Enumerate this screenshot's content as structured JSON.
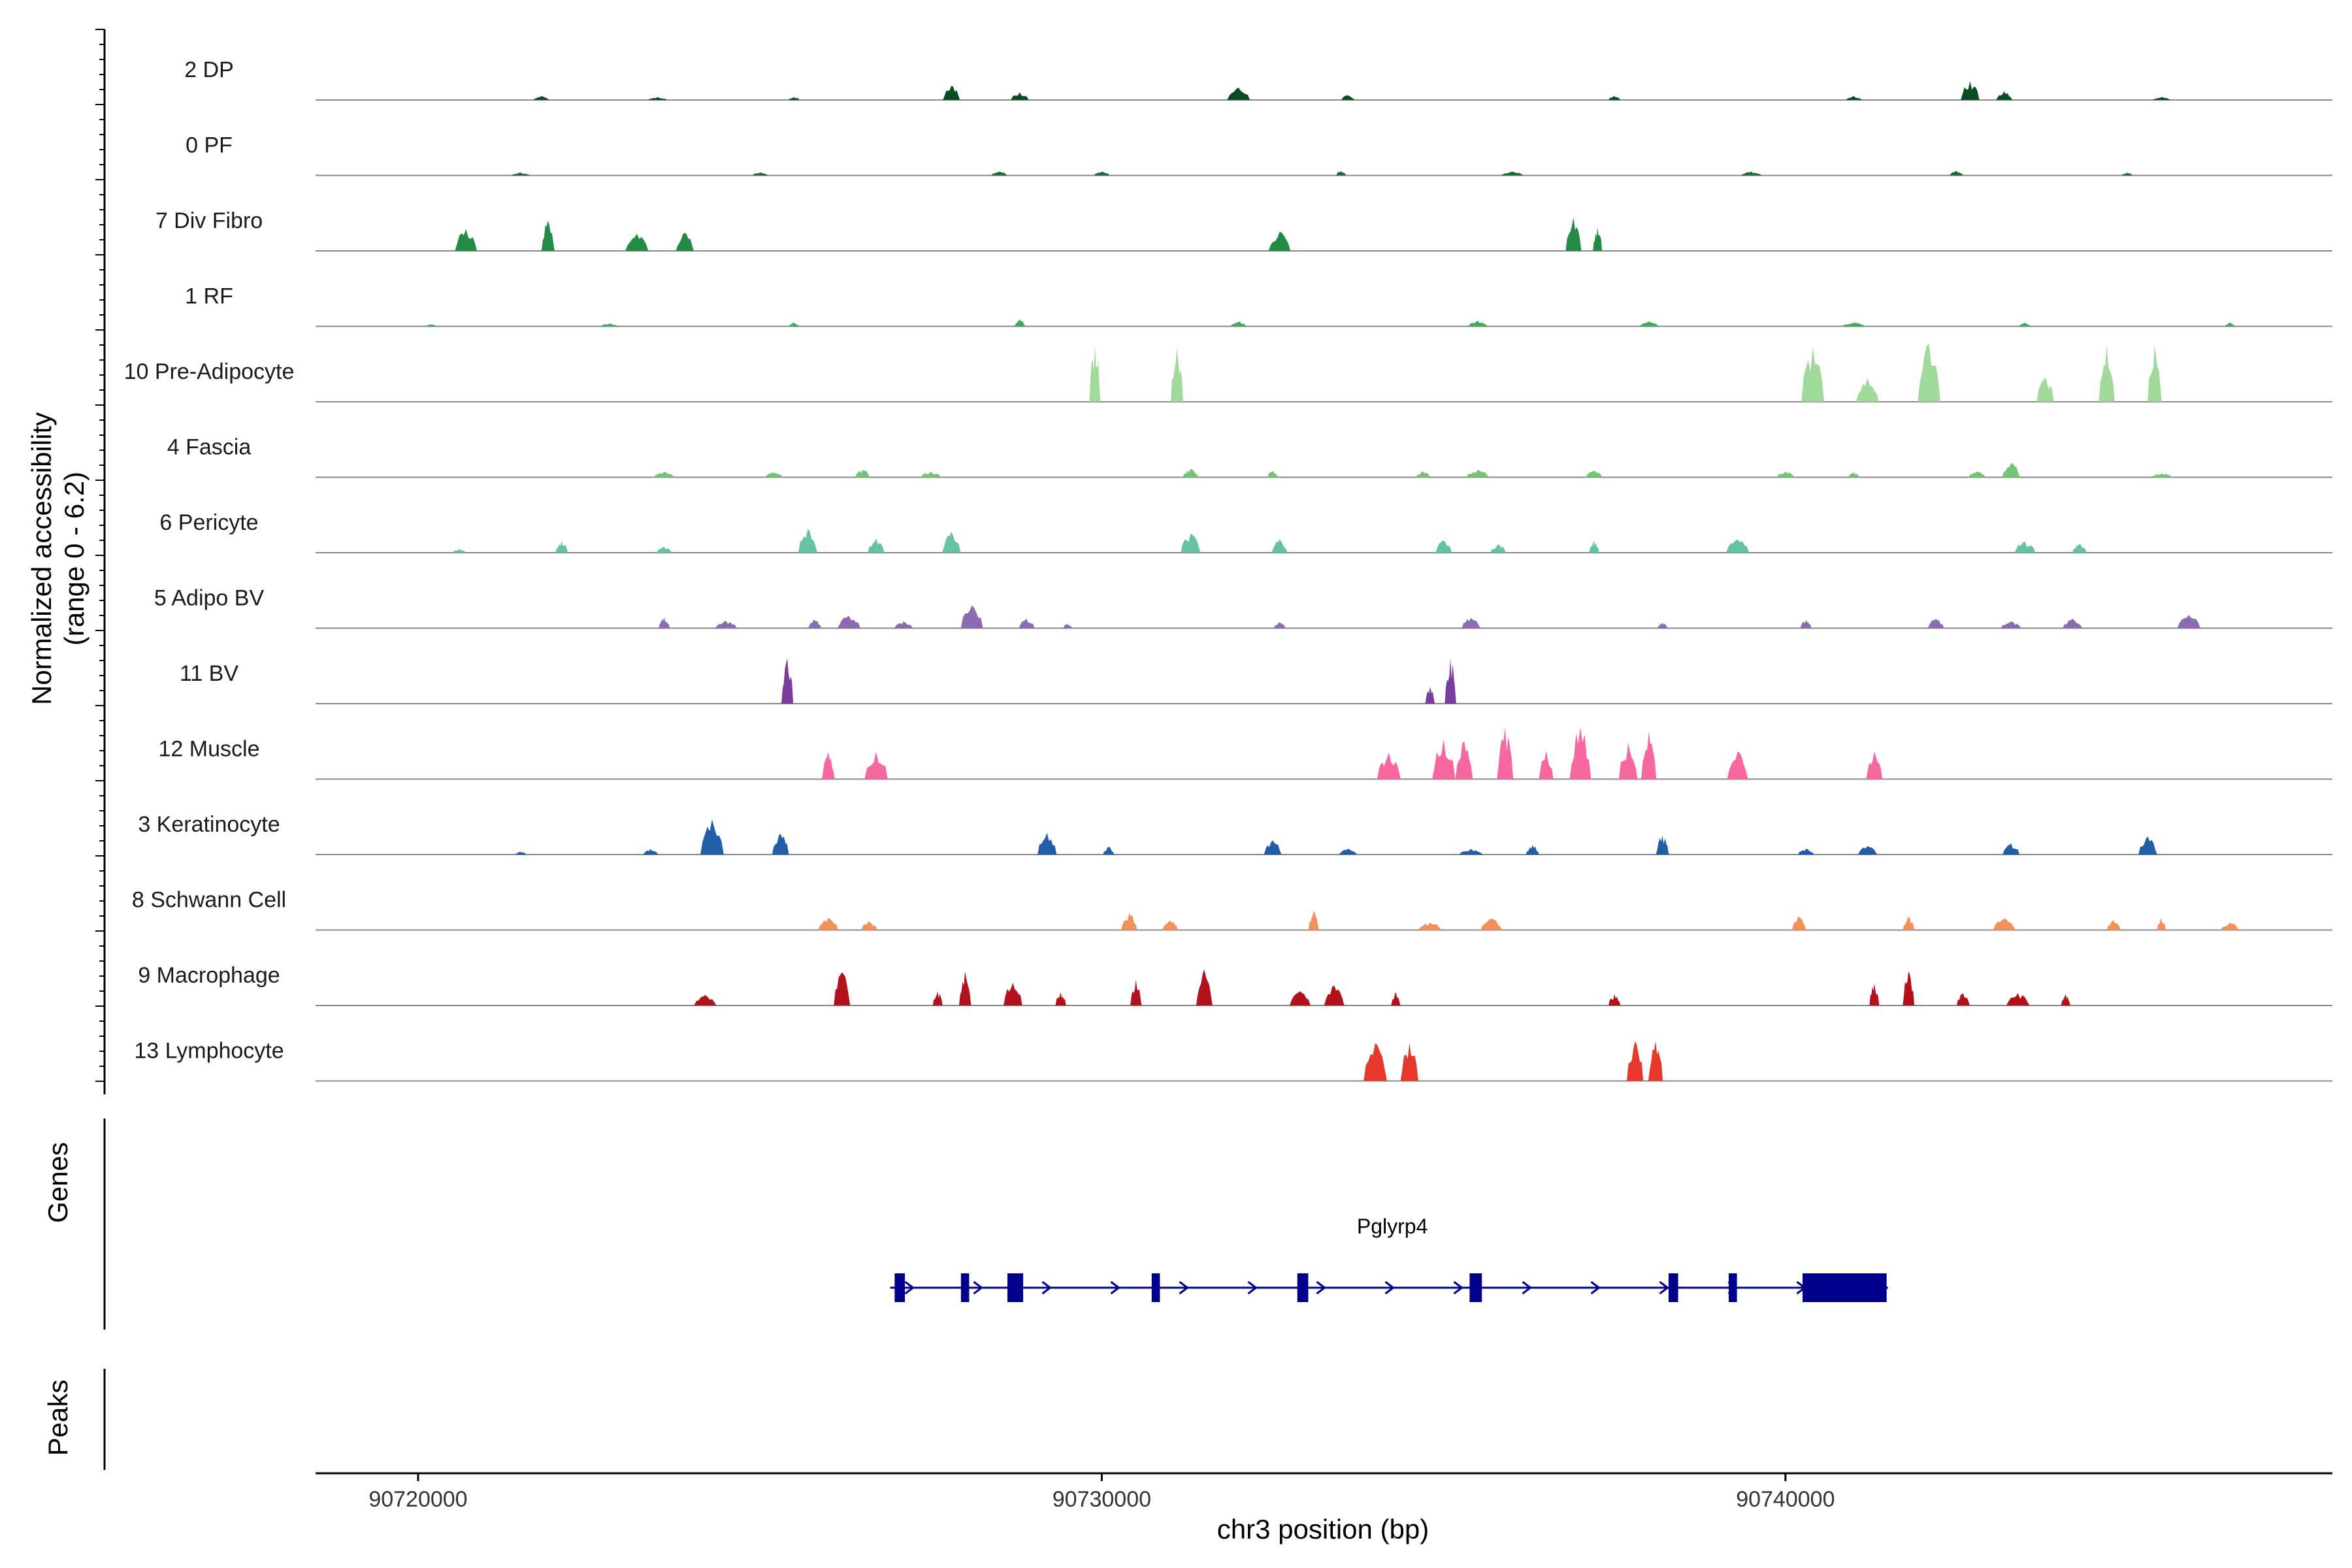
{
  "chart_data": {
    "type": "area",
    "title": "",
    "ylabel": "Normalized accessibility\n(range 0 - 6.2)",
    "ylim": [
      0,
      6.2
    ],
    "xlabel": "chr3 position (bp)",
    "xlim": [
      90718500,
      90748000
    ],
    "x_ticks": [
      90720000,
      90730000,
      90740000
    ],
    "x_tick_labels": [
      "90720000",
      "90730000",
      "90740000"
    ],
    "tracks": [
      {
        "name": "2 DP",
        "color": "#0b4d22",
        "peaks": [
          [
            90721800,
            0.4
          ],
          [
            90723500,
            0.3
          ],
          [
            90725500,
            0.3
          ],
          [
            90727800,
            1.5
          ],
          [
            90728800,
            0.8
          ],
          [
            90732000,
            1.3
          ],
          [
            90733600,
            0.5
          ],
          [
            90737500,
            0.4
          ],
          [
            90741000,
            0.4
          ],
          [
            90742700,
            2.0
          ],
          [
            90743200,
            0.9
          ],
          [
            90745500,
            0.3
          ]
        ]
      },
      {
        "name": "0 PF",
        "color": "#1d6b35",
        "peaks": [
          [
            90721500,
            0.3
          ],
          [
            90725000,
            0.3
          ],
          [
            90728500,
            0.4
          ],
          [
            90730000,
            0.4
          ],
          [
            90733500,
            0.5
          ],
          [
            90736000,
            0.4
          ],
          [
            90739500,
            0.4
          ],
          [
            90742500,
            0.5
          ],
          [
            90745000,
            0.3
          ]
        ]
      },
      {
        "name": "7 Div Fibro",
        "color": "#238b45",
        "peaks": [
          [
            90720700,
            2.3
          ],
          [
            90721900,
            3.2
          ],
          [
            90723200,
            1.8
          ],
          [
            90723900,
            1.9
          ],
          [
            90732600,
            2.0
          ],
          [
            90736900,
            3.5
          ],
          [
            90737250,
            2.5
          ]
        ]
      },
      {
        "name": "1 RF",
        "color": "#41ab5d",
        "peaks": [
          [
            90720200,
            0.2
          ],
          [
            90722800,
            0.3
          ],
          [
            90725500,
            0.4
          ],
          [
            90728800,
            0.7
          ],
          [
            90732000,
            0.5
          ],
          [
            90735500,
            0.6
          ],
          [
            90738000,
            0.5
          ],
          [
            90741000,
            0.4
          ],
          [
            90743500,
            0.4
          ],
          [
            90746500,
            0.4
          ]
        ]
      },
      {
        "name": "10 Pre-Adipocyte",
        "color": "#a1d99b",
        "peaks": [
          [
            90729900,
            6.0
          ],
          [
            90731100,
            5.7
          ],
          [
            90740400,
            5.8
          ],
          [
            90741200,
            2.5
          ],
          [
            90742100,
            6.1
          ],
          [
            90743800,
            2.6
          ],
          [
            90744700,
            6.0
          ],
          [
            90745400,
            6.0
          ]
        ]
      },
      {
        "name": "4 Fascia",
        "color": "#74c476",
        "peaks": [
          [
            90723600,
            0.6
          ],
          [
            90725200,
            0.5
          ],
          [
            90726500,
            0.8
          ],
          [
            90727500,
            0.6
          ],
          [
            90731300,
            0.9
          ],
          [
            90732500,
            0.7
          ],
          [
            90734700,
            0.6
          ],
          [
            90735500,
            0.8
          ],
          [
            90737200,
            0.7
          ],
          [
            90740000,
            0.6
          ],
          [
            90741000,
            0.5
          ],
          [
            90742800,
            0.6
          ],
          [
            90743300,
            1.5
          ],
          [
            90745500,
            0.4
          ]
        ]
      },
      {
        "name": "6 Pericyte",
        "color": "#66c2a4",
        "peaks": [
          [
            90720600,
            0.4
          ],
          [
            90722100,
            1.2
          ],
          [
            90723600,
            0.6
          ],
          [
            90725700,
            2.5
          ],
          [
            90726700,
            1.5
          ],
          [
            90727800,
            2.2
          ],
          [
            90731300,
            2.0
          ],
          [
            90732600,
            1.4
          ],
          [
            90735000,
            1.3
          ],
          [
            90735800,
            0.9
          ],
          [
            90737200,
            1.3
          ],
          [
            90739300,
            1.4
          ],
          [
            90743500,
            1.2
          ],
          [
            90744300,
            0.9
          ]
        ]
      },
      {
        "name": "5 Adipo BV",
        "color": "#8c6bb1",
        "peaks": [
          [
            90723600,
            1.1
          ],
          [
            90724500,
            0.8
          ],
          [
            90725800,
            0.9
          ],
          [
            90726300,
            1.3
          ],
          [
            90727100,
            0.7
          ],
          [
            90728100,
            2.4
          ],
          [
            90728900,
            1.0
          ],
          [
            90729500,
            0.5
          ],
          [
            90732600,
            0.6
          ],
          [
            90735400,
            1.1
          ],
          [
            90738200,
            0.6
          ],
          [
            90740300,
            0.9
          ],
          [
            90742200,
            1.0
          ],
          [
            90743300,
            0.7
          ],
          [
            90744200,
            1.0
          ],
          [
            90745900,
            1.4
          ]
        ]
      },
      {
        "name": "11 BV",
        "color": "#7a3d9e",
        "peaks": [
          [
            90725400,
            4.8
          ],
          [
            90734800,
            1.8
          ],
          [
            90735100,
            4.8
          ]
        ]
      },
      {
        "name": "12 Muscle",
        "color": "#f768a1",
        "peaks": [
          [
            90726000,
            2.9
          ],
          [
            90726700,
            2.9
          ],
          [
            90734200,
            2.8
          ],
          [
            90735000,
            4.2
          ],
          [
            90735300,
            4.0
          ],
          [
            90735900,
            5.5
          ],
          [
            90736500,
            3.0
          ],
          [
            90737000,
            5.5
          ],
          [
            90737700,
            3.8
          ],
          [
            90738000,
            5.0
          ],
          [
            90739300,
            2.9
          ],
          [
            90741300,
            2.9
          ]
        ]
      },
      {
        "name": "3 Keratinocyte",
        "color": "#225ea8",
        "peaks": [
          [
            90721500,
            0.3
          ],
          [
            90723400,
            0.6
          ],
          [
            90724300,
            3.7
          ],
          [
            90725300,
            2.2
          ],
          [
            90729200,
            2.3
          ],
          [
            90730100,
            0.8
          ],
          [
            90732500,
            1.5
          ],
          [
            90733600,
            0.6
          ],
          [
            90735400,
            0.6
          ],
          [
            90736300,
            1.0
          ],
          [
            90738200,
            2.0
          ],
          [
            90740300,
            0.6
          ],
          [
            90741200,
            0.9
          ],
          [
            90743300,
            1.2
          ],
          [
            90745300,
            1.9
          ]
        ]
      },
      {
        "name": "8 Schwann Cell",
        "color": "#f4915a",
        "peaks": [
          [
            90726000,
            1.3
          ],
          [
            90726600,
            0.9
          ],
          [
            90730400,
            1.8
          ],
          [
            90731000,
            1.0
          ],
          [
            90733100,
            2.0
          ],
          [
            90734800,
            0.8
          ],
          [
            90735700,
            1.2
          ],
          [
            90740200,
            1.4
          ],
          [
            90741800,
            1.4
          ],
          [
            90743200,
            1.2
          ],
          [
            90744800,
            1.0
          ],
          [
            90745500,
            1.2
          ],
          [
            90746500,
            0.8
          ]
        ]
      },
      {
        "name": "9 Macrophage",
        "color": "#b3111b",
        "peaks": [
          [
            90724200,
            1.1
          ],
          [
            90726200,
            3.5
          ],
          [
            90727600,
            1.5
          ],
          [
            90728000,
            3.6
          ],
          [
            90728700,
            2.4
          ],
          [
            90729400,
            1.4
          ],
          [
            90730500,
            2.7
          ],
          [
            90731500,
            3.8
          ],
          [
            90732900,
            1.5
          ],
          [
            90733400,
            2.1
          ],
          [
            90734300,
            1.4
          ],
          [
            90737500,
            1.2
          ],
          [
            90741300,
            2.3
          ],
          [
            90741800,
            3.6
          ],
          [
            90742600,
            1.3
          ],
          [
            90743400,
            1.3
          ],
          [
            90744100,
            1.2
          ]
        ]
      },
      {
        "name": "13 Lymphocyte",
        "color": "#e8372b",
        "peaks": [
          [
            90734000,
            4.0
          ],
          [
            90734500,
            4.0
          ],
          [
            90737800,
            4.2
          ],
          [
            90738100,
            4.2
          ]
        ]
      }
    ],
    "genes_label": "Genes",
    "peaks_label": "Peaks",
    "gene": {
      "name": "Pglyrp4",
      "start": 90727000,
      "end": 90741500,
      "strand": "+",
      "exons": [
        [
          90726970,
          90727120
        ],
        [
          90727940,
          90728060
        ],
        [
          90728620,
          90728850
        ],
        [
          90730730,
          90730850
        ],
        [
          90732860,
          90733020
        ],
        [
          90735380,
          90735560
        ],
        [
          90738290,
          90738430
        ],
        [
          90739170,
          90739290
        ],
        [
          90740250,
          90741480
        ]
      ]
    }
  }
}
